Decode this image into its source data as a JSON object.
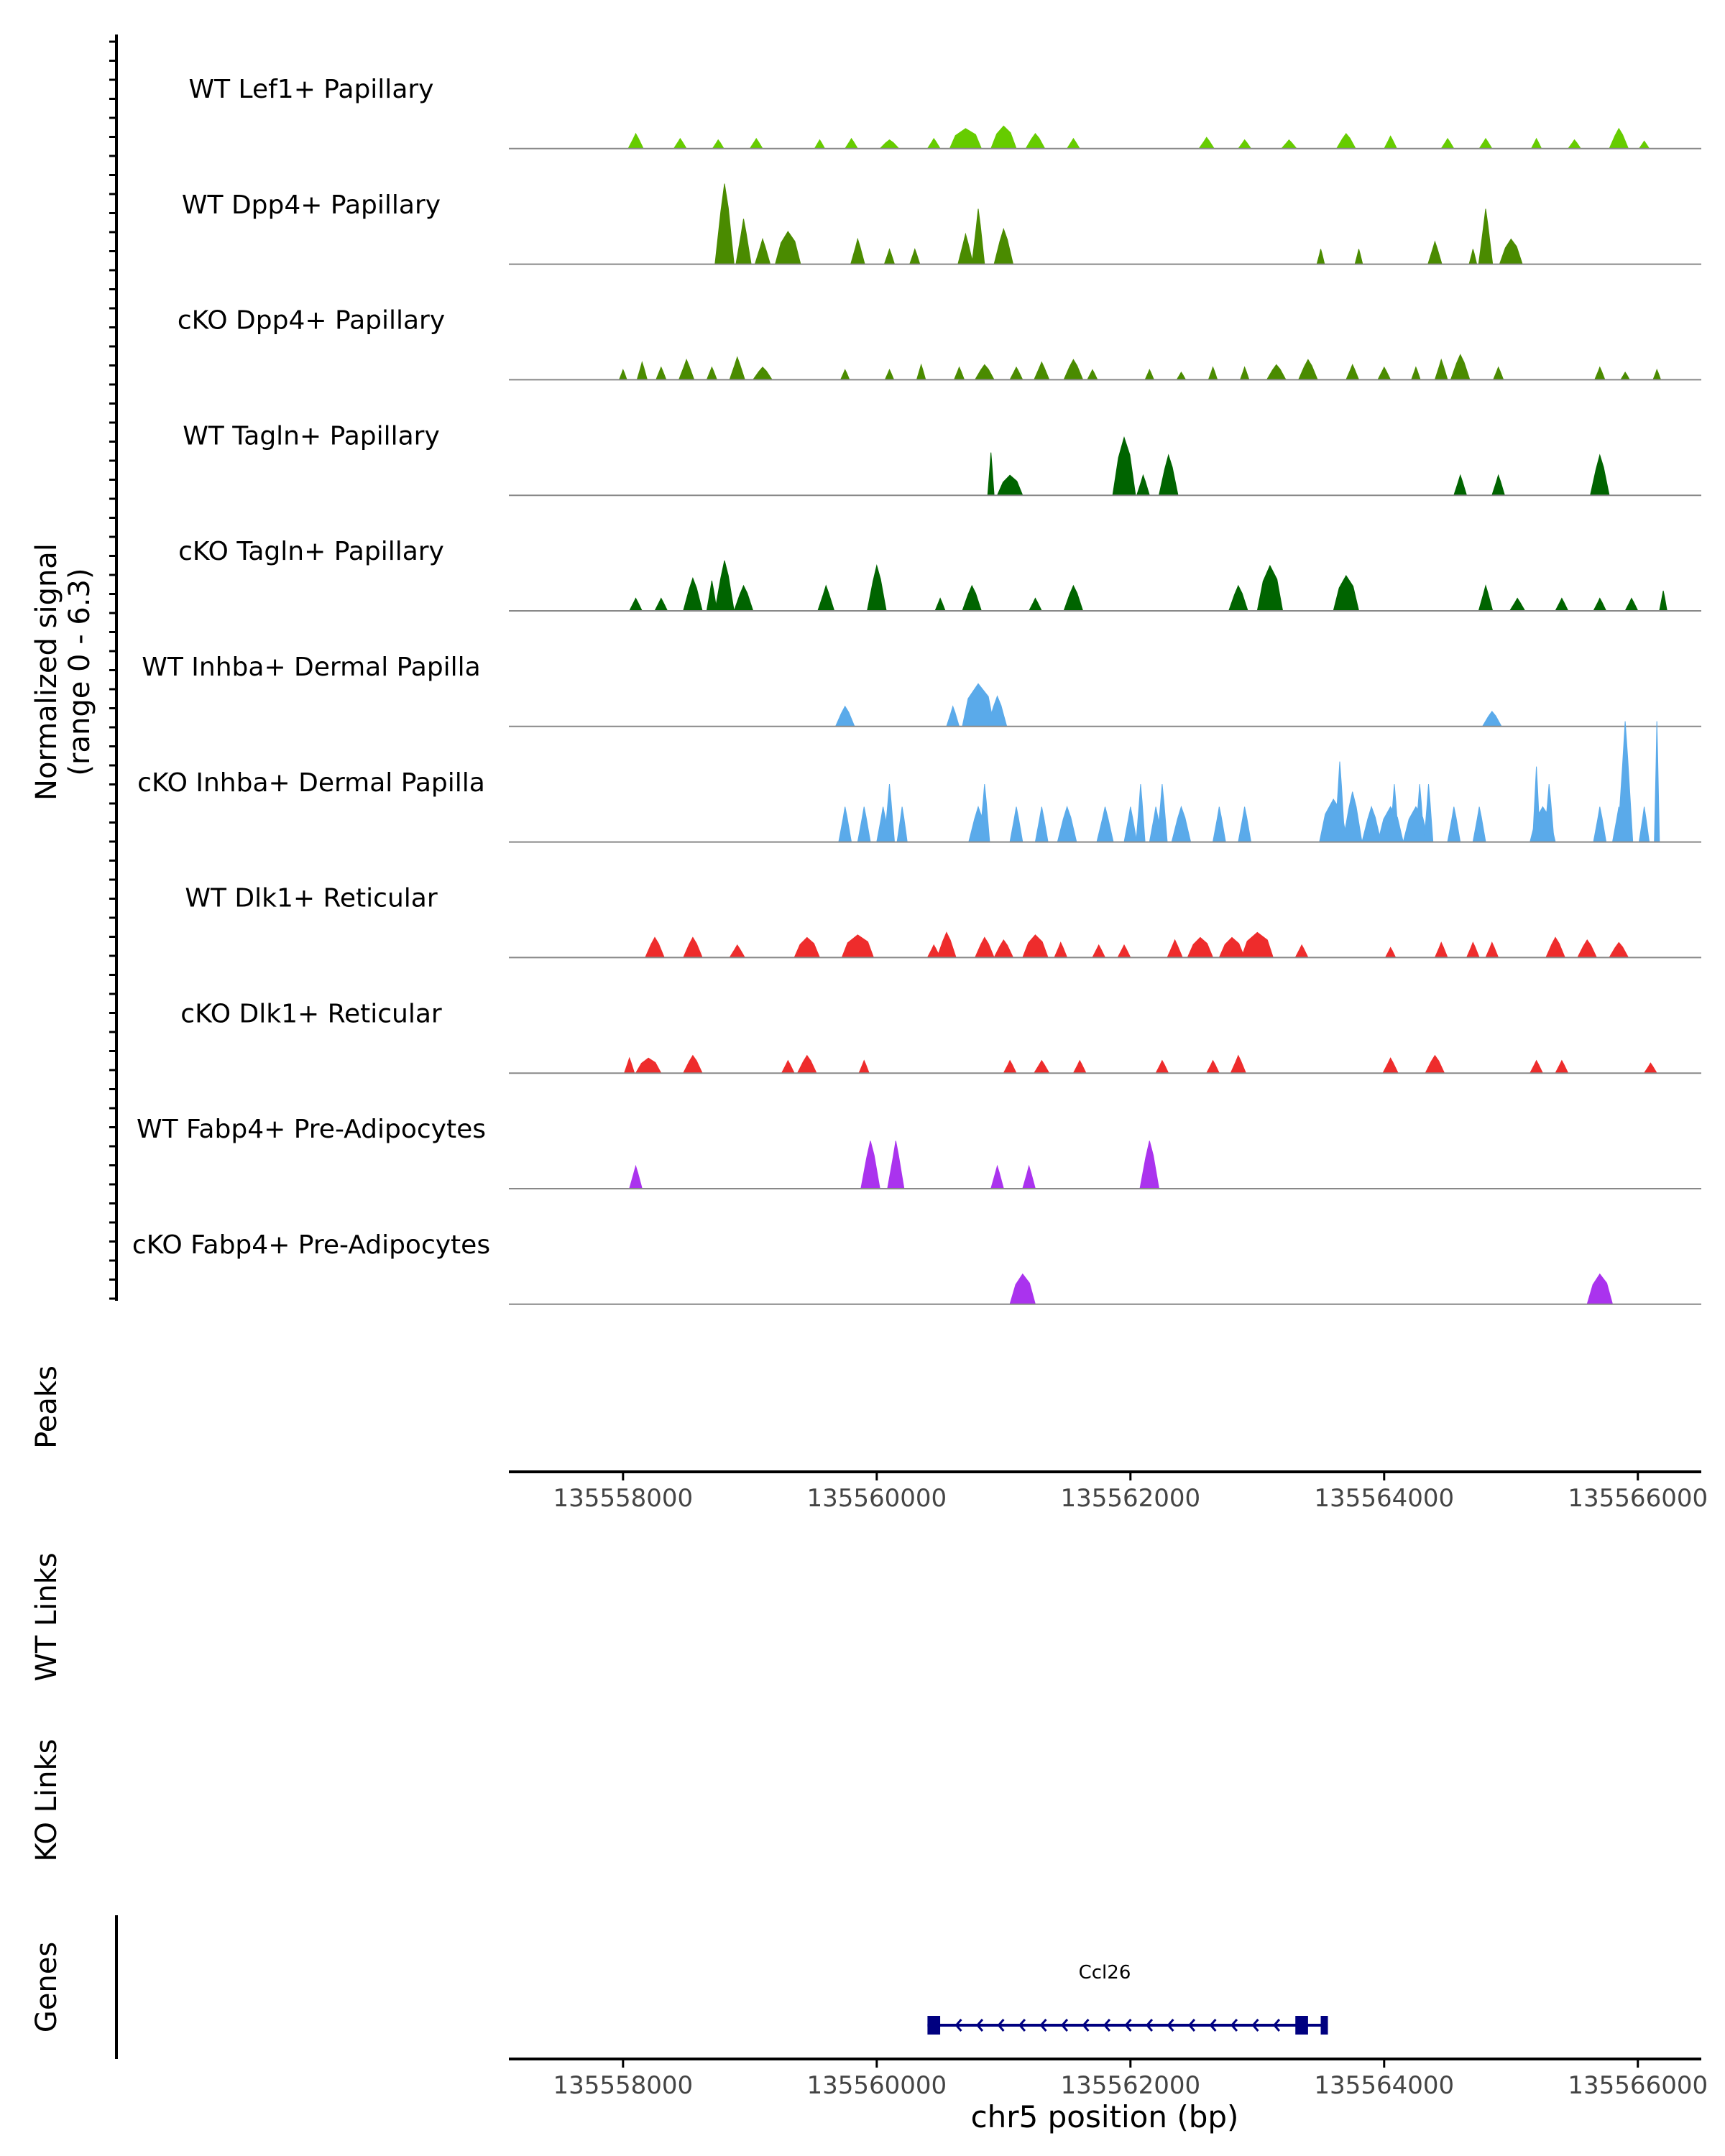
{
  "chart_data": {
    "type": "area",
    "title": "",
    "chromosome": "chr5",
    "xlabel": "chr5 position (bp)",
    "xlim": [
      135557100,
      135566500
    ],
    "x_ticks": [
      135558000,
      135560000,
      135562000,
      135564000,
      135566000
    ],
    "x_tick_labels": [
      "135558000",
      "135560000",
      "135562000",
      "135564000",
      "135566000"
    ],
    "ylabel_line1": "Normalized signal",
    "ylabel_line2": "(range 0 - 6.3)",
    "ylim": [
      0,
      6.3
    ],
    "colors": {
      "lef1": "#66cc00",
      "dpp4": "#4a8b00",
      "tagln": "#006400",
      "inhba": "#5aaaea",
      "dlk1": "#ee2c2c",
      "fabp4": "#aa33ee",
      "gene": "#000080",
      "baseline": "#888888",
      "axis": "#000000"
    },
    "tracks": [
      {
        "name": "WT Lef1+ Papillary",
        "color_key": "lef1",
        "peaks": [
          [
            135558100,
            0.6,
            120
          ],
          [
            135558450,
            0.4,
            100
          ],
          [
            135558750,
            0.35,
            90
          ],
          [
            135559050,
            0.4,
            100
          ],
          [
            135559550,
            0.35,
            80
          ],
          [
            135559800,
            0.4,
            100
          ],
          [
            135560100,
            0.35,
            150
          ],
          [
            135560450,
            0.4,
            100
          ],
          [
            135560700,
            0.8,
            250
          ],
          [
            135561000,
            0.9,
            200
          ],
          [
            135561250,
            0.6,
            150
          ],
          [
            135561550,
            0.4,
            100
          ],
          [
            135562600,
            0.45,
            120
          ],
          [
            135562900,
            0.35,
            100
          ],
          [
            135563250,
            0.35,
            120
          ],
          [
            135563700,
            0.6,
            150
          ],
          [
            135564050,
            0.5,
            100
          ],
          [
            135564500,
            0.4,
            100
          ],
          [
            135564800,
            0.4,
            100
          ],
          [
            135565200,
            0.4,
            80
          ],
          [
            135565500,
            0.35,
            100
          ],
          [
            135565850,
            0.8,
            150
          ],
          [
            135566050,
            0.3,
            80
          ]
        ]
      },
      {
        "name": "WT Dpp4+ Papillary",
        "color_key": "dpp4",
        "peaks": [
          [
            135558800,
            3.2,
            150
          ],
          [
            135558950,
            1.8,
            120
          ],
          [
            135559100,
            1.0,
            120
          ],
          [
            135559300,
            1.3,
            200
          ],
          [
            135559850,
            1.0,
            110
          ],
          [
            135560100,
            0.6,
            80
          ],
          [
            135560300,
            0.6,
            80
          ],
          [
            135560700,
            1.2,
            120
          ],
          [
            135560800,
            2.2,
            100
          ],
          [
            135561000,
            1.4,
            150
          ],
          [
            135563500,
            0.6,
            60
          ],
          [
            135563800,
            0.6,
            60
          ],
          [
            135564400,
            0.9,
            110
          ],
          [
            135564700,
            0.6,
            60
          ],
          [
            135564800,
            2.2,
            110
          ],
          [
            135565000,
            1.0,
            180
          ]
        ]
      },
      {
        "name": "cKO Dpp4+ Papillary",
        "color_key": "dpp4",
        "peaks": [
          [
            135558000,
            0.4,
            60
          ],
          [
            135558150,
            0.7,
            80
          ],
          [
            135558300,
            0.5,
            80
          ],
          [
            135558500,
            0.8,
            120
          ],
          [
            135558700,
            0.5,
            80
          ],
          [
            135558900,
            0.9,
            120
          ],
          [
            135559100,
            0.5,
            150
          ],
          [
            135559750,
            0.4,
            70
          ],
          [
            135560100,
            0.4,
            70
          ],
          [
            135560350,
            0.6,
            70
          ],
          [
            135560650,
            0.5,
            80
          ],
          [
            135560850,
            0.6,
            150
          ],
          [
            135561100,
            0.5,
            100
          ],
          [
            135561300,
            0.7,
            120
          ],
          [
            135561550,
            0.8,
            150
          ],
          [
            135561700,
            0.4,
            80
          ],
          [
            135562150,
            0.4,
            70
          ],
          [
            135562400,
            0.3,
            70
          ],
          [
            135562650,
            0.5,
            70
          ],
          [
            135562900,
            0.5,
            70
          ],
          [
            135563150,
            0.6,
            150
          ],
          [
            135563400,
            0.8,
            150
          ],
          [
            135563750,
            0.6,
            100
          ],
          [
            135564000,
            0.5,
            100
          ],
          [
            135564250,
            0.5,
            70
          ],
          [
            135564450,
            0.8,
            100
          ],
          [
            135564600,
            1.0,
            150
          ],
          [
            135564900,
            0.5,
            80
          ],
          [
            135565700,
            0.5,
            80
          ],
          [
            135565900,
            0.3,
            70
          ],
          [
            135566150,
            0.4,
            60
          ]
        ]
      },
      {
        "name": "WT Tagln+ Papillary",
        "color_key": "tagln",
        "peaks": [
          [
            135560900,
            1.7,
            50
          ],
          [
            135561050,
            0.8,
            200
          ],
          [
            135561950,
            2.3,
            180
          ],
          [
            135562100,
            0.8,
            100
          ],
          [
            135562300,
            1.6,
            150
          ],
          [
            135564600,
            0.8,
            100
          ],
          [
            135564900,
            0.8,
            100
          ],
          [
            135565700,
            1.6,
            150
          ]
        ]
      },
      {
        "name": "cKO Tagln+ Papillary",
        "color_key": "tagln",
        "peaks": [
          [
            135558100,
            0.5,
            100
          ],
          [
            135558300,
            0.5,
            100
          ],
          [
            135558550,
            1.3,
            150
          ],
          [
            135558700,
            1.2,
            80
          ],
          [
            135558800,
            2.0,
            150
          ],
          [
            135558950,
            1.0,
            150
          ],
          [
            135559600,
            1.0,
            130
          ],
          [
            135560000,
            1.8,
            150
          ],
          [
            135560500,
            0.5,
            80
          ],
          [
            135560750,
            1.0,
            150
          ],
          [
            135561250,
            0.5,
            100
          ],
          [
            135561550,
            1.0,
            150
          ],
          [
            135562850,
            1.0,
            150
          ],
          [
            135563100,
            1.8,
            200
          ],
          [
            135563700,
            1.4,
            200
          ],
          [
            135564800,
            1.0,
            110
          ],
          [
            135565050,
            0.5,
            120
          ],
          [
            135565400,
            0.5,
            100
          ],
          [
            135565700,
            0.5,
            100
          ],
          [
            135565950,
            0.5,
            100
          ],
          [
            135566200,
            0.8,
            60
          ]
        ]
      },
      {
        "name": "WT Inhba+ Dermal Papilla",
        "color_key": "inhba",
        "peaks": [
          [
            135559750,
            0.8,
            150
          ],
          [
            135560600,
            0.8,
            100
          ],
          [
            135560800,
            1.7,
            250
          ],
          [
            135560950,
            1.2,
            150
          ],
          [
            135564850,
            0.6,
            150
          ]
        ]
      },
      {
        "name": "cKO Inhba+ Dermal Papilla",
        "color_key": "inhba",
        "peaks": [
          [
            135559750,
            1.4,
            100
          ],
          [
            135559900,
            1.4,
            100
          ],
          [
            135560050,
            1.4,
            100
          ],
          [
            135560100,
            2.3,
            80
          ],
          [
            135560200,
            1.4,
            80
          ],
          [
            135560800,
            1.4,
            150
          ],
          [
            135560850,
            2.3,
            80
          ],
          [
            135561100,
            1.4,
            100
          ],
          [
            135561300,
            1.4,
            100
          ],
          [
            135561500,
            1.4,
            150
          ],
          [
            135561800,
            1.4,
            130
          ],
          [
            135562000,
            1.4,
            100
          ],
          [
            135562080,
            2.3,
            70
          ],
          [
            135562200,
            1.4,
            100
          ],
          [
            135562250,
            2.3,
            80
          ],
          [
            135562400,
            1.4,
            150
          ],
          [
            135562700,
            1.4,
            100
          ],
          [
            135562900,
            1.4,
            100
          ],
          [
            135563600,
            1.7,
            220
          ],
          [
            135563650,
            3.2,
            80
          ],
          [
            135563750,
            2.0,
            150
          ],
          [
            135563900,
            1.4,
            150
          ],
          [
            135564050,
            1.4,
            200
          ],
          [
            135564080,
            2.3,
            70
          ],
          [
            135564250,
            1.4,
            200
          ],
          [
            135564280,
            2.3,
            70
          ],
          [
            135564350,
            2.3,
            70
          ],
          [
            135564550,
            1.4,
            100
          ],
          [
            135564750,
            1.4,
            100
          ],
          [
            135565250,
            1.4,
            200
          ],
          [
            135565200,
            3.0,
            60
          ],
          [
            135565300,
            2.3,
            80
          ],
          [
            135565700,
            1.4,
            100
          ],
          [
            135565850,
            1.4,
            100
          ],
          [
            135565900,
            4.8,
            120
          ],
          [
            135566050,
            1.4,
            80
          ],
          [
            135566150,
            4.8,
            40
          ]
        ]
      },
      {
        "name": "WT Dlk1+ Reticular",
        "color_key": "dlk1",
        "peaks": [
          [
            135558250,
            0.8,
            150
          ],
          [
            135558550,
            0.8,
            150
          ],
          [
            135558900,
            0.5,
            120
          ],
          [
            135559450,
            0.8,
            200
          ],
          [
            135559850,
            0.9,
            250
          ],
          [
            135560450,
            0.5,
            100
          ],
          [
            135560550,
            1.0,
            150
          ],
          [
            135560850,
            0.8,
            150
          ],
          [
            135561000,
            0.7,
            150
          ],
          [
            135561250,
            0.9,
            200
          ],
          [
            135561450,
            0.6,
            100
          ],
          [
            135561750,
            0.5,
            100
          ],
          [
            135561950,
            0.5,
            100
          ],
          [
            135562350,
            0.7,
            120
          ],
          [
            135562550,
            0.8,
            200
          ],
          [
            135562800,
            0.8,
            200
          ],
          [
            135563000,
            1.0,
            250
          ],
          [
            135563350,
            0.5,
            100
          ],
          [
            135564050,
            0.4,
            80
          ],
          [
            135564450,
            0.6,
            100
          ],
          [
            135564700,
            0.6,
            100
          ],
          [
            135564850,
            0.6,
            100
          ],
          [
            135565350,
            0.8,
            150
          ],
          [
            135565600,
            0.7,
            150
          ],
          [
            135565850,
            0.6,
            150
          ]
        ]
      },
      {
        "name": "cKO Dlk1+ Reticular",
        "color_key": "dlk1",
        "peaks": [
          [
            135558050,
            0.6,
            80
          ],
          [
            135558200,
            0.6,
            200
          ],
          [
            135558550,
            0.7,
            150
          ],
          [
            135559300,
            0.5,
            100
          ],
          [
            135559450,
            0.7,
            150
          ],
          [
            135559900,
            0.5,
            80
          ],
          [
            135561050,
            0.5,
            100
          ],
          [
            135561300,
            0.5,
            120
          ],
          [
            135561600,
            0.5,
            100
          ],
          [
            135562250,
            0.5,
            100
          ],
          [
            135562650,
            0.5,
            100
          ],
          [
            135562850,
            0.7,
            120
          ],
          [
            135564050,
            0.6,
            120
          ],
          [
            135564400,
            0.7,
            150
          ],
          [
            135565200,
            0.5,
            100
          ],
          [
            135565400,
            0.5,
            100
          ],
          [
            135566100,
            0.4,
            100
          ]
        ]
      },
      {
        "name": "WT Fabp4+ Pre-Adipocytes",
        "color_key": "fabp4",
        "peaks": [
          [
            135558100,
            0.9,
            100
          ],
          [
            135559950,
            1.9,
            150
          ],
          [
            135560150,
            1.9,
            130
          ],
          [
            135560950,
            0.9,
            100
          ],
          [
            135561200,
            0.9,
            100
          ],
          [
            135562150,
            1.9,
            150
          ]
        ]
      },
      {
        "name": "cKO Fabp4+ Pre-Adipocytes",
        "color_key": "fabp4",
        "peaks": [
          [
            135561150,
            1.2,
            200
          ],
          [
            135565700,
            1.2,
            200
          ]
        ]
      }
    ],
    "peaks_panel": {
      "label": "Peaks"
    },
    "links_panels": [
      {
        "label": "WT Links"
      },
      {
        "label": "KO Links"
      }
    ],
    "genes_panel": {
      "label": "Genes",
      "gene_name": "Ccl26",
      "strand": "-",
      "start": 135560400,
      "end": 135563550,
      "exons": [
        [
          135560400,
          135560500
        ],
        [
          135563300,
          135563400
        ],
        [
          135563500,
          135563550
        ]
      ]
    }
  }
}
